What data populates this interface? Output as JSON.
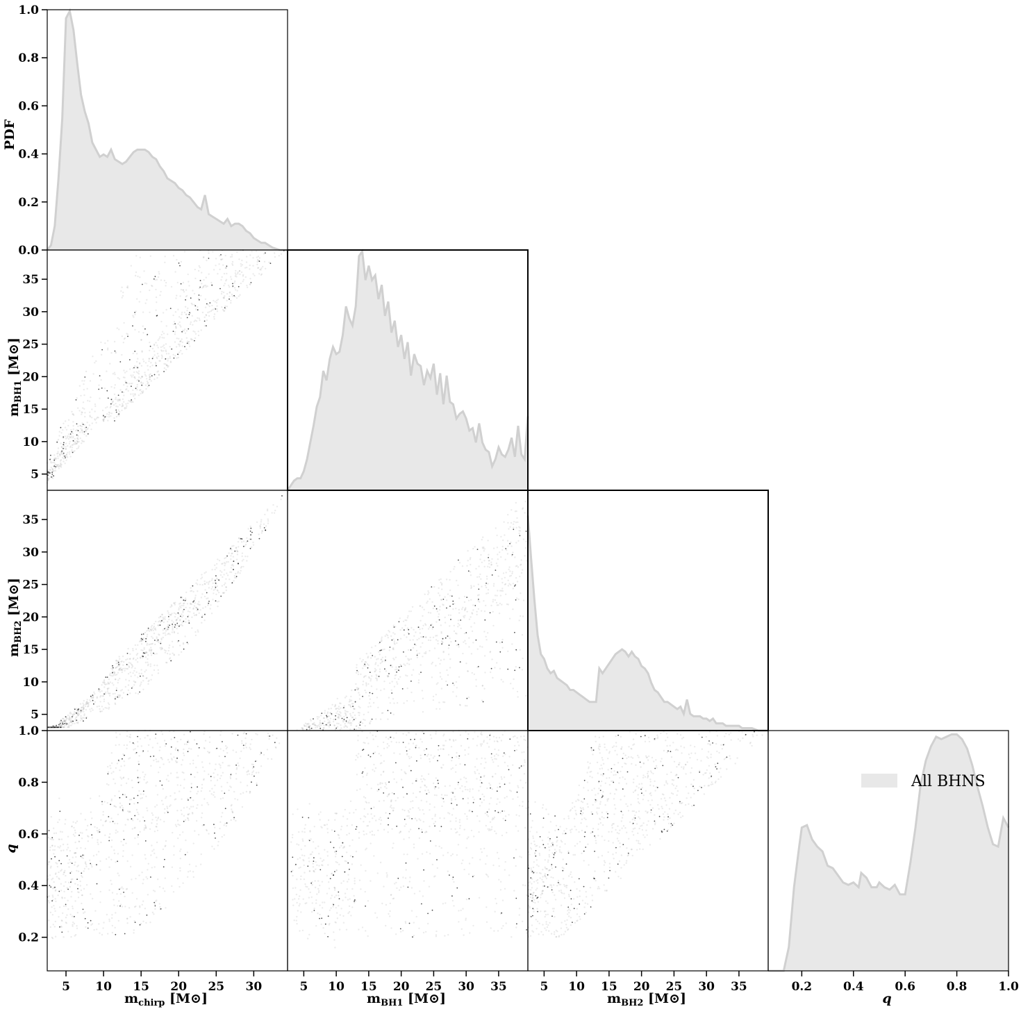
{
  "colors": {
    "hist_fill": "#e8e8e8",
    "hist_line": "#d0d0d0",
    "points": "#000000",
    "axis": "#000000"
  },
  "chart_data": {
    "type": "corner_plot",
    "variables": [
      "m_chirp",
      "m_BH1",
      "m_BH2",
      "q"
    ],
    "axis_labels": {
      "m_chirp": "m_chirp [M⊙]",
      "m_BH1": "m_BH1 [M⊙]",
      "m_BH2": "m_BH2 [M⊙]",
      "q": "q",
      "pdf": "PDF"
    },
    "label_parts": {
      "m_chirp": {
        "base": "m",
        "sub": "chirp",
        "unit": " [M⊙]"
      },
      "m_BH1": {
        "base": "m",
        "sub": "BH1",
        "unit": " [M⊙]"
      },
      "m_BH2": {
        "base": "m",
        "sub": "BH2",
        "unit": " [M⊙]"
      },
      "q": {
        "base": "q",
        "sub": "",
        "unit": ""
      }
    },
    "ranges": {
      "m_chirp": [
        2.5,
        34.5
      ],
      "m_BH1": [
        2.5,
        39.5
      ],
      "m_BH2": [
        2.5,
        39.5
      ],
      "q": [
        0.07,
        1.0
      ],
      "pdf": [
        0.0,
        1.0
      ]
    },
    "ticks": {
      "m_chirp": [
        5,
        10,
        15,
        20,
        25,
        30
      ],
      "m_BH1": [
        5,
        10,
        15,
        20,
        25,
        30,
        35
      ],
      "m_BH2": [
        5,
        10,
        15,
        20,
        25,
        30,
        35
      ],
      "q": [
        0.2,
        0.4,
        0.6,
        0.8,
        1.0
      ],
      "pdf": [
        0.0,
        0.2,
        0.4,
        0.6,
        0.8,
        1.0
      ]
    },
    "tick_labels": {
      "m_chirp": [
        "5",
        "10",
        "15",
        "20",
        "25",
        "30"
      ],
      "m_BH1": [
        "5",
        "10",
        "15",
        "20",
        "25",
        "30",
        "35"
      ],
      "m_BH2": [
        "5",
        "10",
        "15",
        "20",
        "25",
        "30",
        "35"
      ],
      "q": [
        "0.2",
        "0.4",
        "0.6",
        "0.8",
        "1.0"
      ],
      "pdf": [
        "0.0",
        "0.2",
        "0.4",
        "0.6",
        "0.8",
        "1.0"
      ]
    },
    "legend": {
      "label": "All BHNS",
      "position": "upper-right of q histogram"
    },
    "histograms": {
      "m_chirp": {
        "x": [
          2.5,
          3,
          3.5,
          4,
          4.5,
          5,
          5.5,
          6,
          6.5,
          7,
          7.5,
          8,
          8.5,
          9,
          9.5,
          10,
          10.5,
          11,
          11.5,
          12,
          12.5,
          13,
          13.5,
          14,
          14.5,
          15,
          15.5,
          16,
          16.5,
          17,
          17.5,
          18,
          18.5,
          19,
          19.5,
          20,
          20.5,
          21,
          21.5,
          22,
          22.5,
          23,
          23.5,
          24,
          24.5,
          25,
          25.5,
          26,
          26.5,
          27,
          27.5,
          28,
          28.5,
          29,
          29.5,
          30,
          30.5,
          31,
          31.5,
          32,
          32.5,
          33,
          33.5,
          34,
          34.5
        ],
        "y": [
          0.0,
          0.02,
          0.1,
          0.3,
          0.55,
          0.97,
          1.0,
          0.92,
          0.78,
          0.65,
          0.58,
          0.53,
          0.45,
          0.42,
          0.39,
          0.4,
          0.39,
          0.42,
          0.38,
          0.37,
          0.36,
          0.37,
          0.39,
          0.41,
          0.42,
          0.42,
          0.42,
          0.41,
          0.39,
          0.38,
          0.35,
          0.33,
          0.3,
          0.29,
          0.28,
          0.26,
          0.25,
          0.23,
          0.22,
          0.2,
          0.18,
          0.17,
          0.23,
          0.15,
          0.14,
          0.13,
          0.12,
          0.11,
          0.13,
          0.1,
          0.11,
          0.11,
          0.1,
          0.08,
          0.07,
          0.05,
          0.04,
          0.03,
          0.03,
          0.02,
          0.01,
          0.005,
          0.0,
          0.0,
          0.0
        ]
      },
      "m_BH1": {
        "x": [
          2.5,
          3,
          3.5,
          4,
          4.5,
          5,
          5.5,
          6,
          6.5,
          7,
          7.5,
          8,
          8.5,
          9,
          9.5,
          10,
          10.5,
          11,
          11.5,
          12,
          12.5,
          13,
          13.5,
          14,
          14.5,
          15,
          15.5,
          16,
          16.5,
          17,
          17.5,
          18,
          18.5,
          19,
          19.5,
          20,
          20.5,
          21,
          21.5,
          22,
          22.5,
          23,
          23.5,
          24,
          24.5,
          25,
          25.5,
          26,
          26.5,
          27,
          27.5,
          28,
          28.5,
          29,
          29.5,
          30,
          30.5,
          31,
          31.5,
          32,
          32.5,
          33,
          33.5,
          34,
          34.5,
          35,
          35.5,
          36,
          36.5,
          37,
          37.5,
          38,
          38.5,
          39,
          39.5
        ],
        "y": [
          0.0,
          0.02,
          0.04,
          0.05,
          0.05,
          0.08,
          0.13,
          0.2,
          0.27,
          0.35,
          0.39,
          0.5,
          0.46,
          0.55,
          0.6,
          0.57,
          0.58,
          0.65,
          0.77,
          0.72,
          0.69,
          0.77,
          0.98,
          1.0,
          0.88,
          0.94,
          0.88,
          0.9,
          0.8,
          0.86,
          0.73,
          0.79,
          0.66,
          0.71,
          0.6,
          0.65,
          0.55,
          0.62,
          0.48,
          0.57,
          0.53,
          0.52,
          0.44,
          0.5,
          0.47,
          0.53,
          0.4,
          0.49,
          0.36,
          0.48,
          0.37,
          0.36,
          0.3,
          0.32,
          0.33,
          0.3,
          0.25,
          0.26,
          0.2,
          0.28,
          0.2,
          0.17,
          0.16,
          0.1,
          0.13,
          0.18,
          0.15,
          0.14,
          0.17,
          0.22,
          0.14,
          0.27,
          0.15,
          0.13,
          0.31
        ]
      },
      "m_BH2": {
        "x": [
          2.5,
          3,
          3.5,
          4,
          4.5,
          5,
          5.5,
          6,
          6.5,
          7,
          7.5,
          8,
          8.5,
          9,
          9.5,
          10,
          10.5,
          11,
          11.5,
          12,
          12.5,
          13,
          13.5,
          14,
          14.5,
          15,
          15.5,
          16,
          16.5,
          17,
          17.5,
          18,
          18.5,
          19,
          19.5,
          20,
          20.5,
          21,
          21.5,
          22,
          22.5,
          23,
          23.5,
          24,
          24.5,
          25,
          25.5,
          26,
          26.5,
          27,
          27.5,
          28,
          28.5,
          29,
          29.5,
          30,
          30.5,
          31,
          31.5,
          32,
          32.5,
          33,
          33.5,
          34,
          34.5,
          35,
          35.5,
          36,
          36.5,
          37,
          37.5,
          38,
          38.5,
          39,
          39.5
        ],
        "y": [
          0.9,
          0.72,
          0.55,
          0.4,
          0.32,
          0.3,
          0.26,
          0.24,
          0.25,
          0.22,
          0.21,
          0.2,
          0.19,
          0.17,
          0.17,
          0.16,
          0.15,
          0.14,
          0.13,
          0.12,
          0.12,
          0.12,
          0.26,
          0.24,
          0.26,
          0.28,
          0.3,
          0.32,
          0.33,
          0.34,
          0.33,
          0.31,
          0.33,
          0.31,
          0.3,
          0.27,
          0.26,
          0.24,
          0.2,
          0.17,
          0.16,
          0.14,
          0.12,
          0.12,
          0.11,
          0.1,
          0.09,
          0.1,
          0.07,
          0.13,
          0.07,
          0.06,
          0.06,
          0.06,
          0.05,
          0.05,
          0.04,
          0.05,
          0.03,
          0.03,
          0.03,
          0.02,
          0.02,
          0.02,
          0.02,
          0.02,
          0.01,
          0.01,
          0.01,
          0.01,
          0.005,
          0.0,
          0.0,
          0.0,
          0.0
        ]
      },
      "q": {
        "x": [
          0.07,
          0.1,
          0.13,
          0.15,
          0.17,
          0.19,
          0.2,
          0.22,
          0.24,
          0.26,
          0.28,
          0.3,
          0.32,
          0.34,
          0.36,
          0.38,
          0.4,
          0.42,
          0.43,
          0.45,
          0.47,
          0.49,
          0.5,
          0.52,
          0.54,
          0.56,
          0.58,
          0.6,
          0.62,
          0.64,
          0.66,
          0.68,
          0.7,
          0.72,
          0.74,
          0.76,
          0.78,
          0.8,
          0.82,
          0.84,
          0.86,
          0.88,
          0.9,
          0.92,
          0.94,
          0.96,
          0.98,
          1.0
        ],
        "y": [
          0.0,
          0.0,
          0.0,
          0.1,
          0.35,
          0.52,
          0.6,
          0.61,
          0.55,
          0.52,
          0.5,
          0.44,
          0.43,
          0.4,
          0.37,
          0.36,
          0.37,
          0.35,
          0.41,
          0.39,
          0.35,
          0.35,
          0.37,
          0.35,
          0.34,
          0.36,
          0.32,
          0.32,
          0.45,
          0.6,
          0.78,
          0.88,
          0.94,
          0.98,
          0.97,
          0.98,
          0.99,
          0.99,
          0.97,
          0.93,
          0.86,
          0.77,
          0.69,
          0.6,
          0.53,
          0.52,
          0.64,
          0.6
        ]
      }
    },
    "scatter_panels": [
      {
        "x": "m_chirp",
        "y": "m_BH1",
        "description_region": "points along diagonal band from (4,4) to (34.5,39.5)"
      },
      {
        "x": "m_chirp",
        "y": "m_BH2",
        "description_region": "narrow band from (4,3) to (34.5,39.5)"
      },
      {
        "x": "m_BH1",
        "y": "m_BH2",
        "description_region": "wedge from (13,3) to (39.5,39.5)"
      },
      {
        "x": "m_chirp",
        "y": "q"
      },
      {
        "x": "m_BH1",
        "y": "q"
      },
      {
        "x": "m_BH2",
        "y": "q"
      }
    ]
  }
}
